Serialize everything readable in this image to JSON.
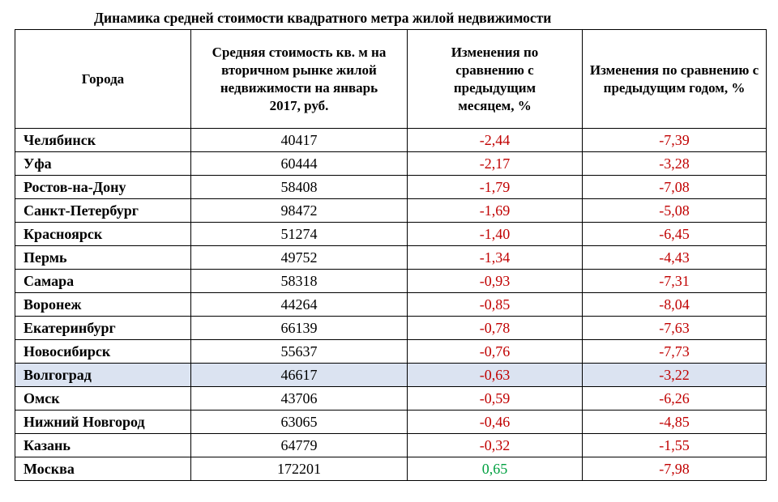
{
  "title": "Динамика средней стоимости квадратного метра жилой недвижимости",
  "headers": {
    "city": "Города",
    "price": "Средняя стоимость кв. м на вторичном рынке жилой недвижимости на январь 2017, руб.",
    "month_change": "Изменения по сравнению с предыдущим месяцем, %",
    "year_change": "Изменения по сравнению с предыдущим годом, %"
  },
  "rows": [
    {
      "city": "Челябинск",
      "price": "40417",
      "month": "-2,44",
      "year": "-7,39"
    },
    {
      "city": "Уфа",
      "price": "60444",
      "month": "-2,17",
      "year": "-3,28"
    },
    {
      "city": "Ростов-на-Дону",
      "price": "58408",
      "month": "-1,79",
      "year": "-7,08"
    },
    {
      "city": "Санкт-Петербург",
      "price": "98472",
      "month": "-1,69",
      "year": "-5,08"
    },
    {
      "city": "Красноярск",
      "price": "51274",
      "month": "-1,40",
      "year": "-6,45"
    },
    {
      "city": "Пермь",
      "price": "49752",
      "month": "-1,34",
      "year": "-4,43"
    },
    {
      "city": "Самара",
      "price": "58318",
      "month": "-0,93",
      "year": "-7,31"
    },
    {
      "city": "Воронеж",
      "price": "44264",
      "month": "-0,85",
      "year": "-8,04"
    },
    {
      "city": "Екатеринбург",
      "price": "66139",
      "month": "-0,78",
      "year": "-7,63"
    },
    {
      "city": "Новосибирск",
      "price": "55637",
      "month": "-0,76",
      "year": "-7,73"
    },
    {
      "city": "Волгоград",
      "price": "46617",
      "month": "-0,63",
      "year": "-3,22",
      "highlight": true
    },
    {
      "city": "Омск",
      "price": "43706",
      "month": "-0,59",
      "year": "-6,26"
    },
    {
      "city": "Нижний Новгород",
      "price": "63065",
      "month": "-0,46",
      "year": "-4,85"
    },
    {
      "city": "Казань",
      "price": "64779",
      "month": "-0,32",
      "year": "-1,55"
    },
    {
      "city": "Москва",
      "price": "172201",
      "month": "0,65",
      "year": "-7,98"
    }
  ],
  "colors": {
    "negative": "#c00000",
    "positive": "#00a040",
    "highlight_row": "#dbe3f1"
  }
}
